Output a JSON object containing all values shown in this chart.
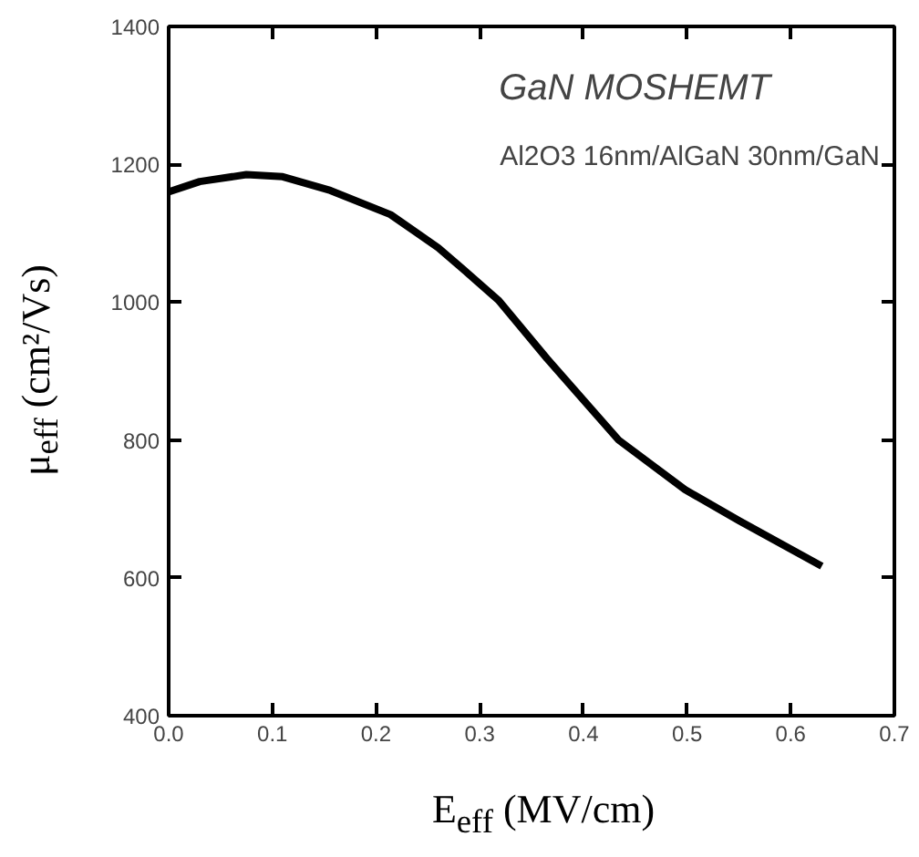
{
  "chart_data": {
    "type": "line",
    "xlabel": "E$_{eff}$ (MV/cm)",
    "ylabel": "μ$_{eff}$ (cm²/Vs)",
    "annotations": [
      "GaN MOSHEMT",
      "Al2O3 16nm/AlGaN 30nm/GaN"
    ],
    "x": [
      0.0,
      0.03,
      0.075,
      0.11,
      0.156,
      0.214,
      0.26,
      0.29,
      0.318,
      0.365,
      0.41,
      0.434,
      0.498,
      0.55,
      0.63
    ],
    "series": [
      {
        "color": "#000000",
        "values": [
          1160,
          1175,
          1185,
          1182,
          1162,
          1127,
          1079,
          1040,
          1003,
          918,
          841,
          800,
          728,
          683,
          617
        ]
      }
    ],
    "xlim": [
      0,
      0.7
    ],
    "ylim": [
      400,
      1400
    ],
    "xticks": [
      {
        "value": 0,
        "label": "0.0"
      },
      0.1,
      0.2,
      0.3,
      0.4,
      0.5,
      0.6,
      0.7
    ],
    "yticks": [
      400,
      600,
      800,
      1000,
      1200,
      1400
    ],
    "grid": false,
    "marker": "none",
    "line_style": "solid"
  }
}
